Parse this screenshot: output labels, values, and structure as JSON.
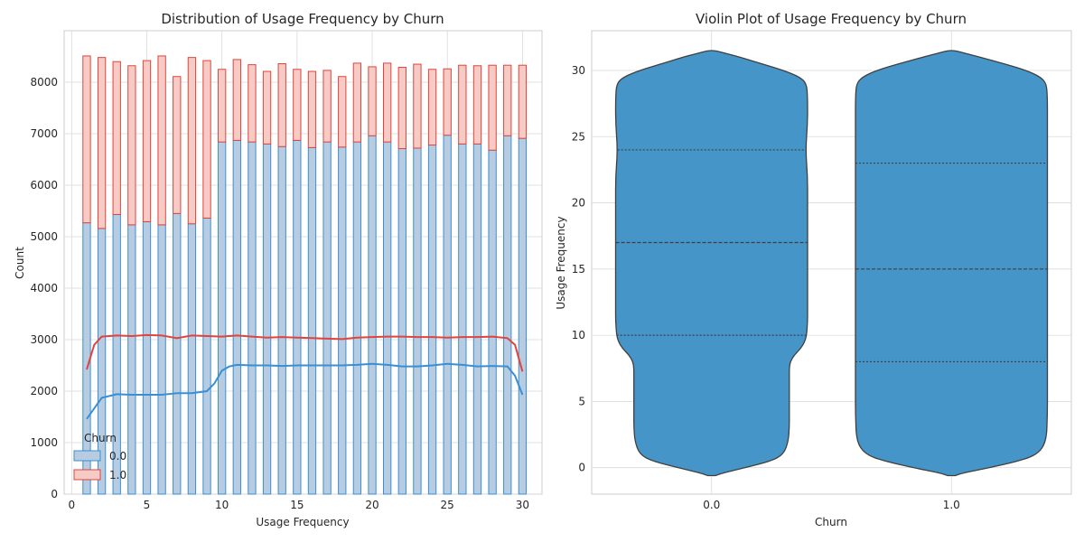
{
  "chart_data": [
    {
      "type": "bar",
      "subtype": "stacked-histogram-with-kde",
      "title": "Distribution of Usage Frequency by Churn",
      "xlabel": "Usage Frequency",
      "ylabel": "Count",
      "xlim": [
        0,
        30
      ],
      "ylim": [
        0,
        9000
      ],
      "xticks": [
        0,
        5,
        10,
        15,
        20,
        25,
        30
      ],
      "yticks": [
        0,
        1000,
        2000,
        3000,
        4000,
        5000,
        6000,
        7000,
        8000
      ],
      "grid": true,
      "legend": {
        "title": "Churn",
        "placement": "lower-left"
      },
      "categories": [
        1,
        2,
        3,
        4,
        5,
        6,
        7,
        8,
        9,
        10,
        11,
        12,
        13,
        14,
        15,
        16,
        17,
        18,
        19,
        20,
        21,
        22,
        23,
        24,
        25,
        26,
        27,
        28,
        29,
        30
      ],
      "series": [
        {
          "name": "0.0",
          "color": "#3a8fd4",
          "fill": "#b7cce0",
          "values": [
            5270,
            5160,
            5430,
            5230,
            5290,
            5230,
            5450,
            5250,
            5360,
            6840,
            6870,
            6840,
            6800,
            6750,
            6870,
            6730,
            6840,
            6740,
            6840,
            6960,
            6840,
            6710,
            6720,
            6780,
            6970,
            6800,
            6800,
            6680,
            6960,
            6910
          ]
        },
        {
          "name": "1.0",
          "color": "#e0443c",
          "fill": "#f7cbc5",
          "values": [
            3240,
            3320,
            2970,
            3090,
            3130,
            3280,
            2660,
            3230,
            3060,
            1410,
            1570,
            1500,
            1410,
            1610,
            1380,
            1480,
            1390,
            1370,
            1530,
            1340,
            1530,
            1580,
            1630,
            1470,
            1290,
            1530,
            1520,
            1650,
            1370,
            1420
          ]
        }
      ],
      "kde": [
        {
          "name": "0.0",
          "x": [
            1,
            2,
            3,
            4,
            5,
            6,
            7,
            8,
            9,
            9.5,
            10,
            10.5,
            11,
            12,
            13,
            14,
            15,
            16,
            17,
            18,
            19,
            20,
            21,
            22,
            23,
            24,
            25,
            26,
            27,
            28,
            29,
            29.5,
            30
          ],
          "y": [
            1460,
            1870,
            1940,
            1930,
            1930,
            1930,
            1960,
            1960,
            2000,
            2150,
            2400,
            2480,
            2510,
            2500,
            2500,
            2490,
            2500,
            2500,
            2500,
            2500,
            2510,
            2530,
            2510,
            2480,
            2480,
            2500,
            2530,
            2510,
            2480,
            2490,
            2480,
            2300,
            1930
          ]
        },
        {
          "name": "1.0",
          "x": [
            1,
            1.5,
            2,
            3,
            4,
            5,
            6,
            7,
            8,
            9,
            10,
            11,
            12,
            13,
            14,
            15,
            16,
            17,
            18,
            19,
            20,
            21,
            22,
            23,
            24,
            25,
            26,
            27,
            28,
            29,
            29.5,
            30
          ],
          "y": [
            2420,
            2900,
            3060,
            3080,
            3070,
            3090,
            3080,
            3030,
            3080,
            3070,
            3060,
            3080,
            3060,
            3040,
            3050,
            3040,
            3030,
            3020,
            3010,
            3040,
            3050,
            3060,
            3060,
            3050,
            3050,
            3040,
            3050,
            3050,
            3060,
            3030,
            2900,
            2380
          ]
        }
      ]
    },
    {
      "type": "violin",
      "title": "Violin Plot of Usage Frequency by Churn",
      "xlabel": "Churn",
      "ylabel": "Usage Frequency",
      "categories": [
        "0.0",
        "1.0"
      ],
      "ylim": [
        -2,
        33
      ],
      "yticks": [
        0,
        5,
        10,
        15,
        20,
        25,
        30
      ],
      "grid": true,
      "color": "#4595c9",
      "violins": [
        {
          "category": "0.0",
          "quartiles": [
            10,
            17,
            24
          ],
          "profile_y": [
            -0.6,
            -0.4,
            0,
            0.5,
            1,
            2,
            3,
            4,
            5,
            6,
            7,
            7.5,
            8,
            8.5,
            9,
            9.5,
            10,
            11,
            12,
            14,
            16,
            18,
            20,
            22,
            24,
            26,
            28,
            29,
            29.5,
            30,
            30.5,
            31,
            31.3,
            31.5
          ],
          "profile_width": [
            0.04,
            0.12,
            0.35,
            0.62,
            0.75,
            0.8,
            0.81,
            0.81,
            0.81,
            0.81,
            0.81,
            0.81,
            0.82,
            0.86,
            0.93,
            0.97,
            0.99,
            1.0,
            1.0,
            1.0,
            1.0,
            1.0,
            1.0,
            1.0,
            0.98,
            1.0,
            1.0,
            0.99,
            0.92,
            0.75,
            0.52,
            0.3,
            0.14,
            0.04
          ]
        },
        {
          "category": "1.0",
          "quartiles": [
            8,
            15,
            23
          ],
          "profile_y": [
            -0.6,
            -0.4,
            0,
            0.5,
            1,
            2,
            4,
            6,
            8,
            10,
            12,
            14,
            16,
            18,
            20,
            22,
            24,
            26,
            28,
            29,
            29.5,
            30,
            30.5,
            31,
            31.3,
            31.5
          ],
          "profile_width": [
            0.04,
            0.12,
            0.4,
            0.7,
            0.9,
            0.99,
            1.0,
            1.0,
            1.0,
            1.0,
            1.0,
            1.0,
            1.0,
            1.0,
            1.0,
            1.0,
            1.0,
            1.0,
            1.0,
            0.99,
            0.93,
            0.78,
            0.55,
            0.3,
            0.14,
            0.04
          ]
        }
      ]
    }
  ]
}
